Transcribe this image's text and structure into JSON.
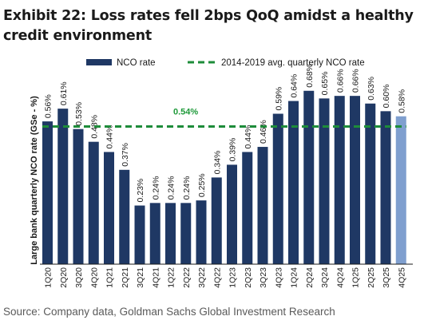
{
  "header": {
    "title": "Exhibit 22: Loss rates fell 2bps QoQ amidst a healthy credit environment"
  },
  "footer": {
    "source": "Source: Company data, Goldman Sachs Global Investment Research"
  },
  "colors": {
    "bar": "#1f3864",
    "bar_highlight": "#7f9fcf",
    "avg_line": "#1e8c3a"
  },
  "chart_data": {
    "type": "bar",
    "ylabel": "Large bank quarterly NCO rate (GSe - %)",
    "categories": [
      "1Q20",
      "2Q20",
      "3Q20",
      "4Q20",
      "1Q21",
      "2Q21",
      "3Q21",
      "4Q21",
      "1Q22",
      "2Q22",
      "3Q22",
      "4Q22",
      "1Q23",
      "2Q23",
      "3Q23",
      "4Q23",
      "1Q24",
      "2Q24",
      "3Q24",
      "4Q24",
      "1Q25",
      "2Q25",
      "3Q25",
      "4Q25"
    ],
    "series": [
      {
        "name": "NCO rate",
        "values": [
          0.56,
          0.61,
          0.53,
          0.48,
          0.44,
          0.37,
          0.23,
          0.24,
          0.24,
          0.24,
          0.25,
          0.34,
          0.39,
          0.44,
          0.46,
          0.59,
          0.64,
          0.68,
          0.65,
          0.66,
          0.66,
          0.63,
          0.6,
          0.58
        ],
        "labels": [
          "0.56%",
          "0.61%",
          "0.53%",
          "0.48%",
          "0.44%",
          "0.37%",
          "0.23%",
          "0.24%",
          "0.24%",
          "0.24%",
          "0.25%",
          "0.34%",
          "0.39%",
          "0.44%",
          "0.46%",
          "0.59%",
          "0.64%",
          "0.68%",
          "0.65%",
          "0.66%",
          "0.66%",
          "0.63%",
          "0.60%",
          "0.58%"
        ]
      }
    ],
    "reference_line": {
      "name": "2014-2019 avg. quarterly NCO rate",
      "value": 0.54,
      "label": "0.54%"
    },
    "highlight_index": 23,
    "ylim": [
      0,
      0.72
    ],
    "grid": false,
    "legend_position": "top"
  }
}
